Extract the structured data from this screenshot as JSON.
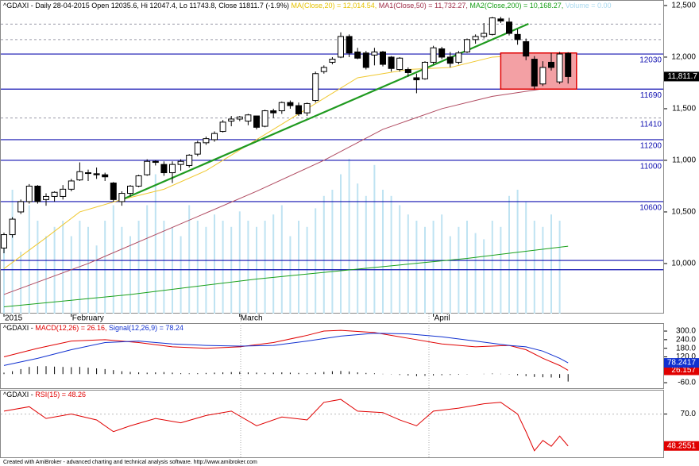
{
  "chart_data": [
    {
      "type": "candlestick",
      "title_parts": [
        {
          "text": "^GDAXI - Daily 28-04-2015 Open 12035.6, Hi 12047.4, Lo 11743.8, Close 11811.7 (-1.9%) ",
          "color": "#000000"
        },
        {
          "text": "MA(Close,20) = 12,014.54, ",
          "color": "#e6c200"
        },
        {
          "text": "MA1(Close,50) = 11,732.27, ",
          "color": "#a0304a"
        },
        {
          "text": "MA2(Close,200) = 10,168.27, ",
          "color": "#1aa01a"
        },
        {
          "text": "Volume = 0.00",
          "color": "#a8d8ee"
        }
      ],
      "x_labels": [
        {
          "index": 0,
          "label": "2015"
        },
        {
          "index": 8,
          "label": "February"
        },
        {
          "index": 28,
          "label": "March"
        },
        {
          "index": 51,
          "label": "April"
        }
      ],
      "open": [
        10150,
        10280,
        10500,
        10600,
        10750,
        10620,
        10650,
        10650,
        10720,
        10810,
        10880,
        10870,
        10860,
        10780,
        10600,
        10680,
        10750,
        10860,
        10990,
        10960,
        10880,
        10960,
        10950,
        11060,
        11170,
        11200,
        11280,
        11380,
        11400,
        11380,
        11430,
        11330,
        11480,
        11480,
        11560,
        11530,
        11460,
        11580,
        11860,
        11950,
        12000,
        12200,
        12050,
        12040,
        12020,
        12050,
        12000,
        11880,
        11880,
        11800,
        11790,
        11950,
        12080,
        12000,
        11950,
        12050,
        12170,
        12200,
        12220,
        12370,
        12340,
        12220,
        12150,
        11980,
        11740,
        11950,
        11760,
        12035.6
      ],
      "high": [
        10300,
        10450,
        10620,
        10770,
        10760,
        10680,
        10700,
        10760,
        10820,
        10980,
        10910,
        10930,
        10880,
        10790,
        10700,
        10760,
        10860,
        11010,
        11000,
        10990,
        10990,
        11010,
        11060,
        11190,
        11230,
        11280,
        11390,
        11430,
        11430,
        11450,
        11430,
        11490,
        11500,
        11570,
        11580,
        11560,
        11560,
        11860,
        11920,
        12000,
        12240,
        12220,
        12090,
        12060,
        12090,
        12060,
        12010,
        12000,
        11900,
        11840,
        11960,
        12110,
        12100,
        12050,
        12060,
        12180,
        12220,
        12330,
        12390,
        12390,
        12380,
        12270,
        12180,
        12010,
        11960,
        12040,
        12050,
        12047.4
      ],
      "low": [
        10100,
        10250,
        10480,
        10580,
        10580,
        10560,
        10600,
        10620,
        10700,
        10800,
        10800,
        10820,
        10800,
        10600,
        10560,
        10650,
        10740,
        10850,
        10950,
        10850,
        10780,
        10900,
        10930,
        11040,
        11150,
        11180,
        11270,
        11330,
        11380,
        11340,
        11300,
        11320,
        11410,
        11450,
        11500,
        11430,
        11430,
        11560,
        11840,
        11930,
        11990,
        12000,
        11980,
        11880,
        11920,
        11910,
        11860,
        11860,
        11810,
        11650,
        11780,
        11930,
        11980,
        11900,
        11930,
        12040,
        12130,
        12180,
        12210,
        12330,
        12210,
        12120,
        11970,
        11690,
        11720,
        11870,
        11740,
        11743.8
      ],
      "close": [
        10280,
        10430,
        10600,
        10750,
        10600,
        10650,
        10690,
        10720,
        10800,
        10890,
        10880,
        10860,
        10840,
        10620,
        10680,
        10750,
        10850,
        10990,
        10980,
        10880,
        10960,
        10990,
        11050,
        11170,
        11210,
        11260,
        11370,
        11400,
        11420,
        11440,
        11320,
        11480,
        11460,
        11560,
        11530,
        11450,
        11550,
        11840,
        11900,
        11980,
        12200,
        12040,
        11990,
        11900,
        12050,
        11930,
        11890,
        11990,
        11850,
        11780,
        11950,
        12090,
        12000,
        11940,
        12040,
        12170,
        12200,
        12230,
        12380,
        12350,
        12230,
        12170,
        12010,
        11720,
        11900,
        11900,
        12030,
        11811.7
      ],
      "last_label": "11,811.7",
      "volume": {
        "color": "#bfe3f2",
        "vlim": [
          0,
          100
        ],
        "values": [
          22,
          40,
          20,
          35,
          30,
          25,
          28,
          30,
          25,
          30,
          28,
          22,
          30,
          35,
          28,
          25,
          30,
          35,
          45,
          30,
          28,
          25,
          35,
          30,
          28,
          32,
          30,
          28,
          33,
          30,
          28,
          30,
          32,
          35,
          25,
          30,
          28,
          34,
          38,
          40,
          45,
          50,
          42,
          38,
          48,
          40,
          38,
          35,
          32,
          30,
          28,
          30,
          32,
          25,
          28,
          30,
          26,
          24,
          30,
          28,
          38,
          40,
          36,
          30,
          28,
          32,
          30,
          0
        ]
      },
      "overlays": [
        {
          "color": "#1aa01a",
          "x": [
            0,
            15,
            30,
            45,
            55,
            67
          ],
          "values": [
            9580,
            9700,
            9850,
            9970,
            10050,
            10168.27
          ]
        },
        {
          "color": "#b04a60",
          "x": [
            0,
            10,
            20,
            30,
            38,
            45,
            52,
            58,
            63,
            67
          ],
          "values": [
            9700,
            10000,
            10350,
            10700,
            11000,
            11300,
            11500,
            11620,
            11680,
            11732.27
          ]
        },
        {
          "color": "#f0c830",
          "x": [
            0,
            5,
            9,
            14,
            19,
            24,
            28,
            33,
            38,
            42,
            48,
            53,
            58,
            62,
            67
          ],
          "values": [
            9950,
            10250,
            10500,
            10620,
            10720,
            10900,
            11100,
            11350,
            11600,
            11800,
            11880,
            11900,
            12000,
            12020,
            12014.54
          ]
        }
      ],
      "levels": [
        {
          "value": 12320,
          "color": "#9a9aa8",
          "dashed": true,
          "labeled": false
        },
        {
          "value": 12170,
          "color": "#9a9aa8",
          "dashed": true,
          "labeled": false
        },
        {
          "value": 12030,
          "color": "#1010b0",
          "dashed": false,
          "labeled": true
        },
        {
          "value": 11690,
          "color": "#1010b0",
          "dashed": false,
          "labeled": true
        },
        {
          "value": 11410,
          "color": "#9a9aa8",
          "dashed": true,
          "labeled": true
        },
        {
          "value": 11200,
          "color": "#1010b0",
          "dashed": false,
          "labeled": true
        },
        {
          "value": 11000,
          "color": "#1010b0",
          "dashed": false,
          "labeled": true
        },
        {
          "value": 10600,
          "color": "#1010b0",
          "dashed": false,
          "labeled": true
        },
        {
          "value": 10030,
          "color": "#1010b0",
          "dashed": false,
          "labeled": false
        },
        {
          "value": 9940,
          "color": "#1010b0",
          "dashed": false,
          "labeled": false
        }
      ],
      "trendline": {
        "color": "#1f9a1f",
        "x": [
          13.7,
          62.3
        ],
        "values": [
          10608,
          12323
        ]
      },
      "box": {
        "x": [
          59,
          68
        ],
        "values": [
          11690,
          12040
        ],
        "fill": "#f3a0a4",
        "stroke": "#e00000"
      },
      "ylim": [
        9515,
        12515
      ],
      "yticks": [
        {
          "value": 12500,
          "label": "12,500"
        },
        {
          "value": 12000,
          "label": "12,000"
        },
        {
          "value": 11500,
          "label": "11,500"
        },
        {
          "value": 11000,
          "label": "11,000"
        },
        {
          "value": 10500,
          "label": "10,500"
        },
        {
          "value": 10000,
          "label": "10,000"
        }
      ]
    },
    {
      "type": "macd",
      "title_parts": [
        {
          "text": "^GDAXI - ",
          "color": "#000000"
        },
        {
          "text": "MACD(12,26) = 26.16, ",
          "color": "#e00000"
        },
        {
          "text": "Signal(12,26,9) = 78.24",
          "color": "#1030d0"
        }
      ],
      "series": [
        {
          "color": "#e00000",
          "x": [
            0,
            4,
            8,
            12,
            16,
            20,
            24,
            28,
            32,
            36,
            38,
            40,
            44,
            48,
            52,
            56,
            60,
            62,
            64,
            66,
            67
          ],
          "values": [
            120,
            180,
            230,
            240,
            220,
            190,
            180,
            190,
            220,
            270,
            300,
            305,
            290,
            250,
            210,
            190,
            200,
            170,
            110,
            60,
            26.157
          ],
          "last_label": "26.157"
        },
        {
          "color": "#1030d0",
          "x": [
            0,
            4,
            8,
            12,
            16,
            20,
            24,
            28,
            32,
            36,
            40,
            44,
            48,
            52,
            56,
            60,
            62,
            64,
            66,
            67
          ],
          "values": [
            60,
            110,
            170,
            220,
            230,
            210,
            200,
            195,
            200,
            230,
            265,
            285,
            280,
            260,
            230,
            200,
            190,
            160,
            110,
            78.2417
          ],
          "last_label": "78.2417"
        }
      ],
      "histogram": [
        10,
        20,
        35,
        50,
        55,
        55,
        52,
        50,
        48,
        50,
        45,
        40,
        35,
        28,
        20,
        15,
        12,
        10,
        12,
        14,
        10,
        6,
        5,
        6,
        8,
        10,
        12,
        14,
        15,
        12,
        10,
        8,
        10,
        12,
        10,
        8,
        6,
        10,
        15,
        20,
        22,
        18,
        12,
        8,
        5,
        2,
        -2,
        -6,
        -10,
        -14,
        -12,
        -10,
        -8,
        -6,
        -4,
        -2,
        0,
        2,
        4,
        2,
        -2,
        -8,
        -14,
        -20,
        -22,
        -24,
        -26,
        -52
      ],
      "ylim": [
        -104,
        350
      ],
      "yticks": [
        {
          "value": 300,
          "label": "300.0"
        },
        {
          "value": 240,
          "label": "240.0"
        },
        {
          "value": 180,
          "label": "180.0"
        },
        {
          "value": 120,
          "label": "120.0"
        },
        {
          "value": 60,
          "label": "60.0"
        },
        {
          "value": -60,
          "label": "-60.0"
        }
      ]
    },
    {
      "type": "line",
      "title_parts": [
        {
          "text": "^GDAXI - ",
          "color": "#000000"
        },
        {
          "text": "RSI(15) = 48.26",
          "color": "#e00000"
        }
      ],
      "series": [
        {
          "color": "#e00000",
          "x": [
            0,
            3,
            5,
            8,
            11,
            13,
            15,
            18,
            21,
            24,
            27,
            30,
            33,
            36,
            38,
            40,
            42,
            45,
            47,
            49,
            51,
            54,
            57,
            59,
            61,
            62,
            63,
            64,
            65,
            66,
            67
          ],
          "values": [
            72,
            75,
            67,
            70,
            66,
            58,
            62,
            67,
            64,
            69,
            72,
            62,
            68,
            66,
            78,
            80,
            72,
            71,
            66,
            62,
            72,
            74,
            77,
            78,
            70,
            58,
            45,
            52,
            48,
            55,
            48.2551
          ],
          "last_label": "48.2551"
        }
      ],
      "ylim": [
        40,
        86
      ],
      "yticks": [
        {
          "value": 70,
          "label": "70.0"
        }
      ]
    }
  ],
  "footer": "Created with AmiBroker - advanced charting and technical analysis software. http://www.amibroker.com"
}
